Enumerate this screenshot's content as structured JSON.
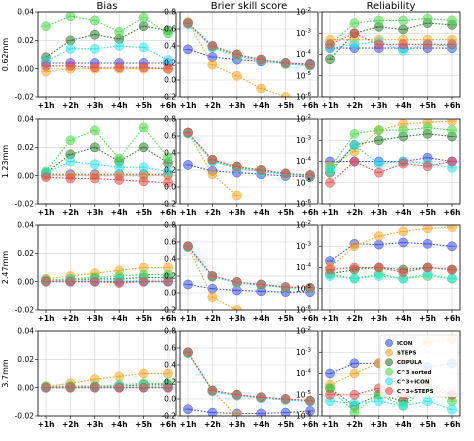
{
  "column_titles": [
    "Bias",
    "Brier skill score",
    "Reliability"
  ],
  "row_labels": [
    "0.62mm",
    "1.23mm",
    "2.47mm",
    "3.7mm"
  ],
  "chart_data": {
    "type": "line",
    "x": [
      "+1h",
      "+2h",
      "+3h",
      "+4h",
      "+5h",
      "+6h"
    ],
    "series": [
      {
        "name": "ICON",
        "color": "#3b4ee8"
      },
      {
        "name": "STEPS",
        "color": "#f5a623"
      },
      {
        "name": "COPULA",
        "color": "#2e7d32"
      },
      {
        "name": "C^3 sorted",
        "color": "#4cd94c"
      },
      {
        "name": "C^3+ICON",
        "color": "#2ee6e6"
      },
      {
        "name": "C^3+STEPS",
        "color": "#e84a4a"
      }
    ],
    "columns": [
      {
        "title": "Bias",
        "scale": "linear",
        "ylim": [
          -0.02,
          0.04
        ],
        "yticks": [
          -0.02,
          0.0,
          0.02,
          0.04
        ],
        "ytick_labels": [
          "-0.02",
          "0.00",
          "0.02",
          "0.04"
        ]
      },
      {
        "title": "Brier skill score",
        "scale": "linear",
        "ylim": [
          -0.2,
          0.8
        ],
        "yticks": [
          -0.2,
          0.0,
          0.2,
          0.4,
          0.6,
          0.8
        ],
        "ytick_labels": [
          "-0.2",
          "0.0",
          "0.2",
          "0.4",
          "0.6",
          "0.8"
        ]
      },
      {
        "title": "Reliability",
        "scale": "log",
        "ylim": [
          1e-06,
          0.01
        ],
        "yticks": [
          1e-06,
          1e-05,
          0.0001,
          0.001,
          0.01
        ],
        "ytick_labels": [
          "10",
          "10",
          "10",
          "10",
          "10"
        ],
        "ytick_exponents": [
          "-6",
          "-5",
          "-4",
          "-3",
          "-2"
        ]
      }
    ],
    "panels": [
      {
        "row": "0.62mm",
        "column": "Bias",
        "values": {
          "ICON": [
            0.004,
            0.004,
            0.004,
            0.004,
            0.004,
            0.004
          ],
          "STEPS": [
            -0.002,
            0.0,
            0.0,
            0.0,
            0.0,
            0.0
          ],
          "COPULA": [
            0.008,
            0.02,
            0.024,
            0.021,
            0.03,
            0.027
          ],
          "C^3 sorted": [
            0.03,
            0.037,
            0.034,
            0.026,
            0.036,
            0.025
          ],
          "C^3+ICON": [
            0.005,
            0.014,
            0.014,
            0.016,
            0.015,
            0.006
          ],
          "C^3+STEPS": [
            0.002,
            0.002,
            0.001,
            0.001,
            0.001,
            0.0
          ]
        }
      },
      {
        "row": "0.62mm",
        "column": "Brier skill score",
        "values": {
          "ICON": [
            0.36,
            0.27,
            0.24,
            0.22,
            0.2,
            0.19
          ],
          "STEPS": [
            0.68,
            0.18,
            0.05,
            -0.1,
            -0.2,
            null
          ],
          "COPULA": [
            0.67,
            0.4,
            0.3,
            0.24,
            0.2,
            0.18
          ],
          "C^3 sorted": [
            0.66,
            0.39,
            0.29,
            0.23,
            0.19,
            0.17
          ],
          "C^3+ICON": [
            0.66,
            0.38,
            0.28,
            0.23,
            0.19,
            0.17
          ],
          "C^3+STEPS": [
            0.67,
            0.4,
            0.3,
            0.24,
            0.2,
            0.18
          ]
        }
      },
      {
        "row": "0.62mm",
        "column": "Reliability",
        "values": {
          "ICON": [
            0.0002,
            0.0002,
            0.0002,
            0.0002,
            0.0002,
            0.0002
          ],
          "STEPS": [
            0.0005,
            0.0005,
            0.0005,
            0.0005,
            0.0005,
            0.0005
          ],
          "COPULA": [
            6e-05,
            0.001,
            0.002,
            0.0015,
            0.003,
            0.0025
          ],
          "C^3 sorted": [
            0.0003,
            0.003,
            0.004,
            0.004,
            0.005,
            0.004
          ],
          "C^3+ICON": [
            0.0002,
            0.0003,
            0.0004,
            0.00015,
            0.0003,
            0.00025
          ],
          "C^3+STEPS": [
            0.0003,
            0.001,
            0.0003,
            0.0003,
            0.0003,
            0.0003
          ]
        }
      },
      {
        "row": "1.23mm",
        "column": "Bias",
        "values": {
          "ICON": [
            0.001,
            0.001,
            0.001,
            0.001,
            0.001,
            0.001
          ],
          "STEPS": [
            0.0,
            0.0,
            0.0,
            0.0,
            0.0,
            0.0
          ],
          "COPULA": [
            0.002,
            0.015,
            0.02,
            0.01,
            0.02,
            0.009
          ],
          "C^3 sorted": [
            0.003,
            0.025,
            0.032,
            0.012,
            0.034,
            0.013
          ],
          "C^3+ICON": [
            0.002,
            0.01,
            0.008,
            0.006,
            0.006,
            0.003
          ],
          "C^3+STEPS": [
            -0.001,
            -0.002,
            -0.002,
            -0.003,
            -0.004,
            -0.005
          ]
        }
      },
      {
        "row": "1.23mm",
        "column": "Brier skill score",
        "values": {
          "ICON": [
            0.26,
            0.19,
            0.17,
            0.15,
            0.13,
            0.12
          ],
          "STEPS": [
            0.64,
            0.15,
            -0.1,
            null,
            null,
            null
          ],
          "COPULA": [
            0.64,
            0.32,
            0.24,
            0.2,
            0.16,
            0.14
          ],
          "C^3 sorted": [
            0.63,
            0.31,
            0.23,
            0.19,
            0.15,
            0.13
          ],
          "C^3+ICON": [
            0.63,
            0.3,
            0.22,
            0.18,
            0.15,
            0.13
          ],
          "C^3+STEPS": [
            0.64,
            0.32,
            0.24,
            0.2,
            0.16,
            0.14
          ]
        }
      },
      {
        "row": "1.23mm",
        "column": "Reliability",
        "values": {
          "ICON": [
            0.0001,
            0.0001,
            0.0001,
            0.0001,
            0.00015,
            0.0001
          ],
          "STEPS": [
            6e-05,
            0.0003,
            0.003,
            0.006,
            0.007,
            0.008
          ],
          "COPULA": [
            3e-05,
            0.0006,
            0.001,
            0.0015,
            0.002,
            0.0015
          ],
          "C^3 sorted": [
            5e-05,
            0.002,
            0.003,
            0.003,
            0.004,
            0.003
          ],
          "C^3+ICON": [
            4e-05,
            0.0006,
            8e-05,
            0.0001,
            8e-05,
            5e-05
          ],
          "C^3+STEPS": [
            1e-05,
            0.0001,
            3e-05,
            8e-05,
            6e-05,
            0.0001
          ]
        }
      },
      {
        "row": "2.47mm",
        "column": "Bias",
        "values": {
          "ICON": [
            0.0,
            0.0,
            0.0,
            0.0,
            0.0,
            0.0
          ],
          "STEPS": [
            0.002,
            0.004,
            0.006,
            0.008,
            0.01,
            0.01
          ],
          "COPULA": [
            0.001,
            0.001,
            0.002,
            0.002,
            0.003,
            0.003
          ],
          "C^3 sorted": [
            0.001,
            0.002,
            0.003,
            0.004,
            0.005,
            0.005
          ],
          "C^3+ICON": [
            0.0,
            0.001,
            0.001,
            0.001,
            0.001,
            0.001
          ],
          "C^3+STEPS": [
            0.0,
            0.0,
            0.0,
            -0.001,
            0.0,
            0.0
          ]
        }
      },
      {
        "row": "2.47mm",
        "column": "Brier skill score",
        "values": {
          "ICON": [
            0.1,
            0.05,
            0.03,
            0.02,
            0.01,
            0.01
          ],
          "STEPS": [
            0.54,
            -0.05,
            -0.2,
            null,
            null,
            null
          ],
          "COPULA": [
            0.55,
            0.2,
            0.13,
            0.1,
            0.07,
            0.06
          ],
          "C^3 sorted": [
            0.54,
            0.19,
            0.12,
            0.09,
            0.07,
            0.05
          ],
          "C^3+ICON": [
            0.54,
            0.19,
            0.12,
            0.09,
            0.06,
            0.05
          ],
          "C^3+STEPS": [
            0.55,
            0.2,
            0.13,
            0.1,
            0.07,
            0.06
          ]
        }
      },
      {
        "row": "2.47mm",
        "column": "Reliability",
        "values": {
          "ICON": [
            0.0002,
            0.0013,
            0.0012,
            0.0015,
            0.0013,
            0.001
          ],
          "STEPS": [
            0.0001,
            0.001,
            0.003,
            0.005,
            0.007,
            0.008
          ],
          "COPULA": [
            5e-05,
            8e-05,
            0.0001,
            8e-05,
            0.0001,
            8e-05
          ],
          "C^3 sorted": [
            5e-05,
            3e-05,
            5e-05,
            3e-05,
            4e-05,
            3e-05
          ],
          "C^3+ICON": [
            4e-05,
            3e-05,
            4e-05,
            3e-05,
            5e-05,
            3e-05
          ],
          "C^3+STEPS": [
            8e-05,
            0.0001,
            0.0001,
            6e-05,
            0.0001,
            8e-05
          ]
        }
      },
      {
        "row": "3.7mm",
        "column": "Bias",
        "values": {
          "ICON": [
            0.0,
            0.0,
            0.0,
            0.0,
            0.0,
            0.0
          ],
          "STEPS": [
            0.001,
            0.003,
            0.006,
            0.008,
            0.01,
            0.01
          ],
          "COPULA": [
            0.0,
            0.001,
            0.001,
            0.001,
            0.002,
            0.002
          ],
          "C^3 sorted": [
            0.001,
            0.001,
            0.001,
            0.002,
            0.003,
            0.003
          ],
          "C^3+ICON": [
            0.0,
            0.0,
            0.0,
            0.001,
            0.001,
            0.001
          ],
          "C^3+STEPS": [
            0.0,
            0.0,
            0.0,
            0.0,
            0.0,
            0.0
          ]
        }
      },
      {
        "row": "3.7mm",
        "column": "Brier skill score",
        "values": {
          "ICON": [
            -0.12,
            -0.16,
            -0.17,
            -0.17,
            -0.16,
            -0.14
          ],
          "STEPS": [
            0.54,
            0.1,
            -0.2,
            null,
            null,
            null
          ],
          "COPULA": [
            0.55,
            0.1,
            0.05,
            0.02,
            0.0,
            -0.02
          ],
          "C^3 sorted": [
            0.54,
            0.09,
            0.04,
            0.01,
            -0.01,
            -0.03
          ],
          "C^3+ICON": [
            0.54,
            0.09,
            0.04,
            0.01,
            -0.01,
            -0.03
          ],
          "C^3+STEPS": [
            0.55,
            0.1,
            0.05,
            0.02,
            0.0,
            -0.02
          ]
        }
      },
      {
        "row": "3.7mm",
        "column": "Reliability",
        "values": {
          "ICON": [
            0.0001,
            0.0003,
            0.0003,
            0.0003,
            0.0002,
            0.0003
          ],
          "STEPS": [
            3e-05,
            0.0001,
            0.0003,
            0.0005,
            0.003,
            0.004
          ],
          "COPULA": [
            2e-05,
            3e-06,
            1e-05,
            5e-06,
            2e-05,
            1e-05
          ],
          "C^3 sorted": [
            2e-05,
            1.5e-06,
            1e-05,
            3e-06,
            2e-05,
            5e-06
          ],
          "C^3+ICON": [
            5e-06,
            4e-06,
            5e-06,
            3e-06,
            5e-06,
            2e-06
          ],
          "C^3+STEPS": [
            1e-05,
            1e-05,
            2e-05,
            1e-05,
            4e-05,
            1e-05
          ]
        }
      }
    ],
    "legend": {
      "placement": "inside lower-right panel, top-right",
      "entries": [
        "ICON",
        "STEPS",
        "COPULA",
        "C^3 sorted",
        "C^3+ICON",
        "C^3+STEPS"
      ]
    },
    "grid": true
  }
}
